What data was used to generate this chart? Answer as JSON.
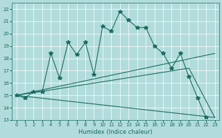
{
  "xlabel": "Humidex (Indice chaleur)",
  "xlim": [
    -0.5,
    23.5
  ],
  "ylim": [
    13,
    22.5
  ],
  "xticks": [
    0,
    1,
    2,
    3,
    4,
    5,
    6,
    7,
    8,
    9,
    10,
    11,
    12,
    13,
    14,
    15,
    16,
    17,
    18,
    19,
    20,
    21,
    22,
    23
  ],
  "yticks": [
    13,
    14,
    15,
    16,
    17,
    18,
    19,
    20,
    21,
    22
  ],
  "bg_color": "#b2dcdc",
  "line_color": "#1a6b5e",
  "grid_color": "#ffffff",
  "jagged": {
    "x": [
      0,
      1,
      2,
      3,
      4,
      5,
      6,
      7,
      8,
      9,
      10,
      11,
      12,
      13,
      14,
      15,
      16,
      17,
      18,
      19,
      20,
      21,
      22
    ],
    "y": [
      15.0,
      14.8,
      15.3,
      15.3,
      18.4,
      16.4,
      19.3,
      18.3,
      19.3,
      16.7,
      20.6,
      20.2,
      21.8,
      21.1,
      20.5,
      20.5,
      19.0,
      18.4,
      17.2,
      18.4,
      16.5,
      14.8,
      13.2
    ]
  },
  "smooth_lines": [
    {
      "x": [
        0,
        23
      ],
      "y": [
        15.0,
        18.4
      ]
    },
    {
      "x": [
        0,
        20,
        23
      ],
      "y": [
        15.0,
        17.2,
        13.2
      ]
    },
    {
      "x": [
        0,
        23
      ],
      "y": [
        15.0,
        13.2
      ]
    }
  ]
}
